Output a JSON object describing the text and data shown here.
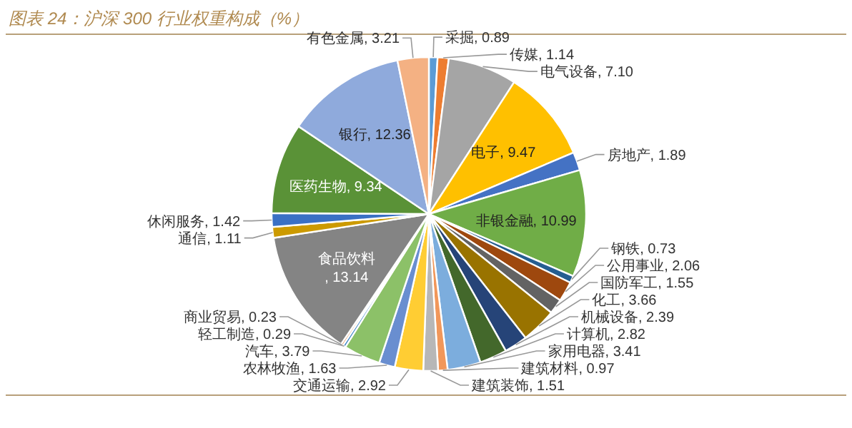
{
  "chart_data": {
    "type": "pie",
    "title": "图表 24：沪深 300 行业权重构成（%）",
    "categories": [
      "采掘",
      "传媒",
      "电气设备",
      "电子",
      "房地产",
      "非银金融",
      "钢铁",
      "公用事业",
      "国防军工",
      "化工",
      "机械设备",
      "计算机",
      "家用电器",
      "建筑材料",
      "建筑装饰",
      "交通运输",
      "农林牧渔",
      "汽车",
      "轻工制造",
      "商业贸易",
      "食品饮料",
      "通信",
      "休闲服务",
      "医药生物",
      "银行",
      "有色金属"
    ],
    "values": [
      0.89,
      1.14,
      7.1,
      9.47,
      1.89,
      10.99,
      0.73,
      2.06,
      1.55,
      3.66,
      2.39,
      2.82,
      3.41,
      0.97,
      1.51,
      2.92,
      1.63,
      3.79,
      0.29,
      0.23,
      13.14,
      1.11,
      1.42,
      9.34,
      12.36,
      3.21
    ],
    "colors": [
      "#5b9bd5",
      "#ed7d31",
      "#a5a5a5",
      "#ffc000",
      "#4472c4",
      "#70ad47",
      "#255e91",
      "#9e480e",
      "#636363",
      "#997300",
      "#264478",
      "#43682b",
      "#7caddd",
      "#f1975a",
      "#b7b7b7",
      "#ffcd33",
      "#698ed0",
      "#8cc168",
      "#327dc2",
      "#d26012",
      "#848484",
      "#cc9a00",
      "#3a70c4",
      "#5a9237",
      "#8faadc",
      "#f4b183"
    ],
    "value_labels": [
      ", 0.89",
      ", 1.14",
      ", 7.10",
      ", 9.47",
      ", 1.89",
      ", 10.99",
      ", 0.73",
      ", 2.06",
      ", 1.55",
      ", 3.66",
      ", 2.39",
      ", 2.82",
      ", 3.41",
      ", 0.97",
      ", 1.51",
      ", 2.92",
      ", 1.63",
      ", 3.79",
      ", 0.29",
      ", 0.23",
      ", 13.14",
      ", 1.11",
      ", 1.42",
      ", 9.34",
      ", 12.36",
      ", 3.21"
    ]
  }
}
